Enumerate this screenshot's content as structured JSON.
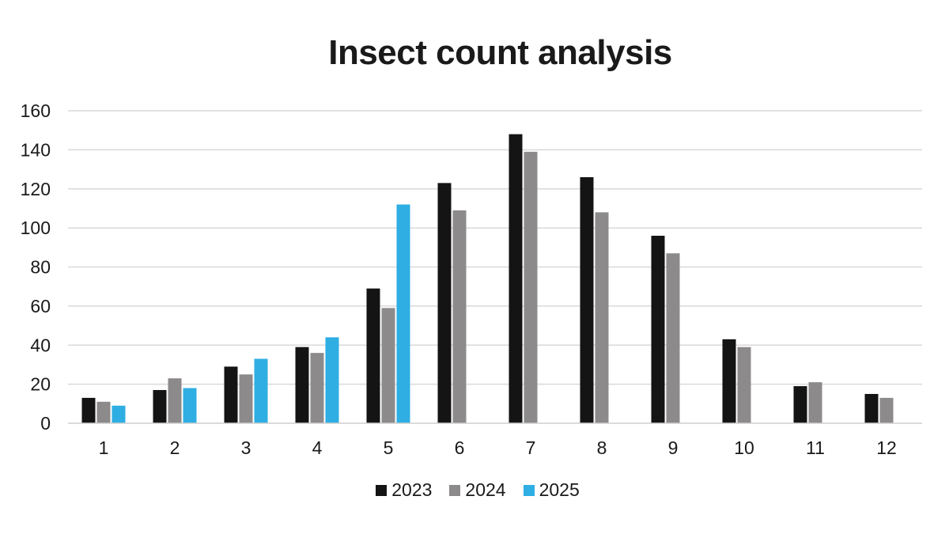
{
  "chart_data": {
    "type": "bar",
    "title": "Insect count analysis",
    "xlabel": "",
    "ylabel": "",
    "categories": [
      "1",
      "2",
      "3",
      "4",
      "5",
      "6",
      "7",
      "8",
      "9",
      "10",
      "11",
      "12"
    ],
    "ylim": [
      0,
      160
    ],
    "yticks": [
      "0",
      "20",
      "40",
      "60",
      "80",
      "100",
      "120",
      "140",
      "160"
    ],
    "grid": true,
    "legend_position": "bottom",
    "series": [
      {
        "name": "2023",
        "color": "#141414",
        "values": [
          13,
          17,
          29,
          39,
          69,
          123,
          148,
          126,
          96,
          43,
          19,
          15
        ]
      },
      {
        "name": "2024",
        "color": "#8c8a8a",
        "values": [
          11,
          23,
          25,
          36,
          59,
          109,
          139,
          108,
          87,
          39,
          21,
          13
        ]
      },
      {
        "name": "2025",
        "color": "#2eaee3",
        "values": [
          9,
          18,
          33,
          44,
          112,
          null,
          null,
          null,
          null,
          null,
          null,
          null
        ]
      }
    ]
  }
}
